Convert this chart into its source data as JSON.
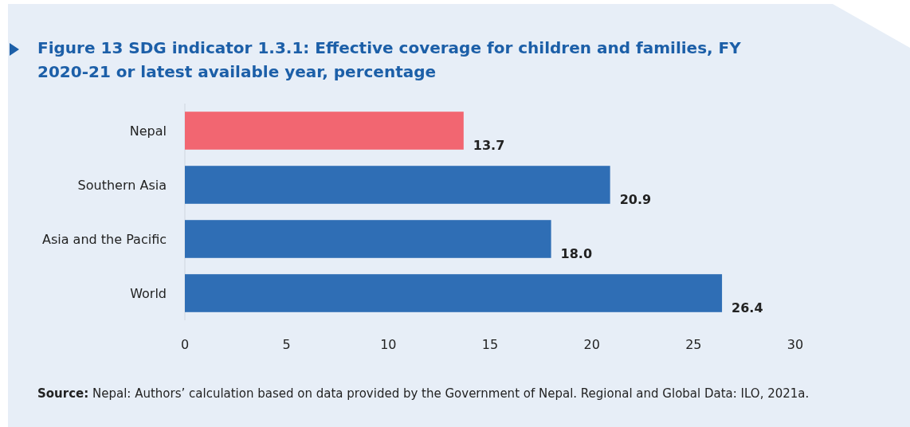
{
  "chart_data": {
    "type": "bar",
    "orientation": "horizontal",
    "title": "Figure 13 SDG indicator 1.3.1: Effective coverage for children and families, FY 2020-21 or latest available year, percentage",
    "categories": [
      "Nepal",
      "Southern Asia",
      "Asia and the Pacific",
      "World"
    ],
    "values": [
      13.7,
      20.9,
      18.0,
      26.4
    ],
    "value_labels": [
      "13.7",
      "20.9",
      "18.0",
      "26.4"
    ],
    "colors": [
      "#f26671",
      "#2f6eb5",
      "#2f6eb5",
      "#2f6eb5"
    ],
    "xlim": [
      0,
      30
    ],
    "xticks": [
      0,
      5,
      10,
      15,
      20,
      25,
      30
    ],
    "grid": false,
    "annotations": [
      "Source: Nepal: Authors’ calculation based on data provided by the Government of Nepal. Regional and Global Data: ILO, 2021a."
    ]
  }
}
